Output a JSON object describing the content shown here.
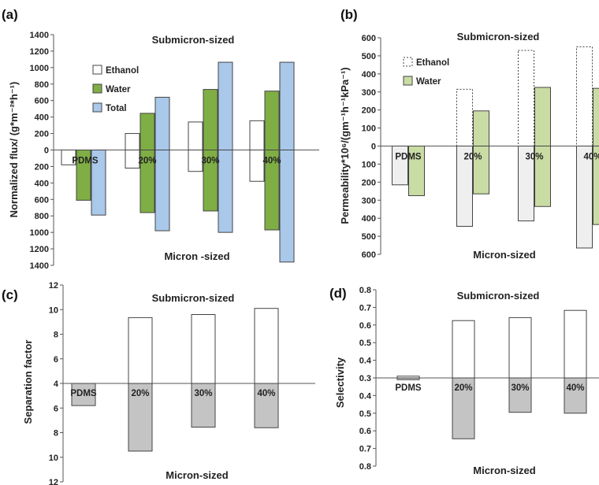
{
  "colors": {
    "ethanol": "#ffffff",
    "water": "#7fae45",
    "total": "#a9c8ea",
    "water_light": "#c9dca4",
    "ethanol_light": "#efefef",
    "gray": "#c4c4c4",
    "stroke": "#444444"
  },
  "chart_data": [
    {
      "id": "a",
      "panel": "(a)",
      "type": "bar",
      "title": "",
      "ylabel": "Normalized flux/ (g*m⁻²*h⁻¹)",
      "top_label": "Submicron-sized",
      "bottom_label": "Micron -sized",
      "categories": [
        "PDMS",
        "20%",
        "30%",
        "40%"
      ],
      "ylim": [
        -1400,
        1400
      ],
      "yticks": [
        1400,
        1200,
        1000,
        800,
        600,
        400,
        200,
        0,
        -200,
        -400,
        -600,
        -800,
        -1000,
        -1200,
        -1400
      ],
      "ytick_labels": [
        "1400",
        "1200",
        "1000",
        "800",
        "600",
        "400",
        "200",
        "0",
        "200",
        "400",
        "600",
        "800",
        "1000",
        "1200",
        "1400"
      ],
      "legend": [
        "Ethanol",
        "Water",
        "Total"
      ],
      "series": [
        {
          "name": "Ethanol",
          "style": "ethanol",
          "up": [
            0,
            200,
            340,
            355
          ],
          "down": [
            -180,
            -220,
            -260,
            -380
          ]
        },
        {
          "name": "Water",
          "style": "water",
          "up": [
            0,
            445,
            735,
            715
          ],
          "down": [
            -610,
            -760,
            -740,
            -970
          ]
        },
        {
          "name": "Total",
          "style": "total",
          "up": [
            0,
            640,
            1065,
            1065
          ],
          "down": [
            -790,
            -980,
            -1000,
            -1360
          ]
        }
      ]
    },
    {
      "id": "b",
      "panel": "(b)",
      "type": "bar",
      "title": "",
      "ylabel": "Permeability*10⁶/(gm⁻¹h⁻¹kPa⁻¹)",
      "top_label": "Submicron-sized",
      "bottom_label": "Micron-sized",
      "categories": [
        "PDMS",
        "20%",
        "30%",
        "40%"
      ],
      "ylim": [
        -600,
        600
      ],
      "yticks": [
        600,
        500,
        400,
        300,
        200,
        100,
        0,
        -100,
        -200,
        -300,
        -400,
        -500,
        -600
      ],
      "ytick_labels": [
        "600",
        "500",
        "400",
        "300",
        "200",
        "100",
        "0",
        "100",
        "200",
        "300",
        "400",
        "500",
        "600"
      ],
      "legend": [
        "Ethanol",
        "Water"
      ],
      "series": [
        {
          "name": "Ethanol",
          "style": "ethanol_dotted",
          "up": [
            0,
            315,
            530,
            550
          ],
          "down": [
            -215,
            -445,
            -415,
            -565
          ]
        },
        {
          "name": "Water",
          "style": "water_light",
          "up": [
            0,
            195,
            325,
            320
          ],
          "down": [
            -275,
            -265,
            -335,
            -435
          ]
        }
      ]
    },
    {
      "id": "c",
      "panel": "(c)",
      "type": "bar",
      "title": "",
      "ylabel": "Separation factor",
      "top_label": "Submicron-sized",
      "bottom_label": "Micron-sized",
      "categories": [
        "PDMS",
        "20%",
        "30%",
        "40%"
      ],
      "ylim": [
        4,
        12
      ],
      "baseline": 4,
      "yticks": [
        12,
        10,
        8,
        6,
        4,
        6,
        8,
        10,
        12
      ],
      "ytick_labels": [
        "12",
        "10",
        "8",
        "6",
        "4",
        "6",
        "8",
        "10",
        "12"
      ],
      "legend": [],
      "series": [
        {
          "name": "",
          "style": "ethanol",
          "up": [
            4,
            9.35,
            9.6,
            10.1
          ],
          "down": [
            5.8,
            9.5,
            7.55,
            7.6
          ]
        }
      ]
    },
    {
      "id": "d",
      "panel": "(d)",
      "type": "bar",
      "title": "",
      "ylabel": "Selectivity",
      "top_label": "Submicron-sized",
      "bottom_label": "Micron-sized",
      "categories": [
        "PDMS",
        "20%",
        "30%",
        "40%"
      ],
      "ylim": [
        0.3,
        0.8
      ],
      "baseline": 0.3,
      "yticks": [
        0.8,
        0.7,
        0.6,
        0.5,
        0.4,
        0.3,
        0.4,
        0.5,
        0.6,
        0.7,
        0.8
      ],
      "ytick_labels": [
        "0.8",
        "0.7",
        "0.6",
        "0.5",
        "0.4",
        "0.3",
        "0.4",
        "0.5",
        "0.6",
        "0.7",
        "0.8"
      ],
      "legend": [],
      "series": [
        {
          "name": "",
          "style": "ethanol",
          "up": [
            0.31,
            0.625,
            0.642,
            0.683
          ],
          "down": [
            0.31,
            0.645,
            0.495,
            0.5
          ]
        }
      ]
    }
  ]
}
